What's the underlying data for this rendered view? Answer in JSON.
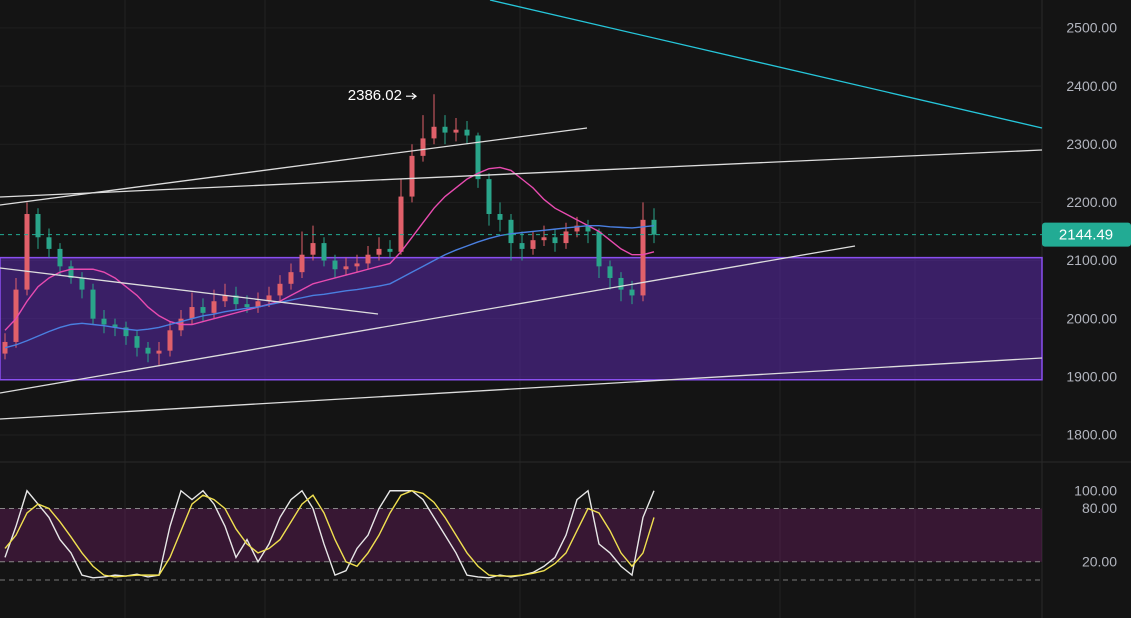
{
  "chart_data": [
    {
      "type": "candlestick",
      "open": [
        1940,
        1960,
        2050,
        2180,
        2140,
        2120,
        2090,
        2070,
        2050,
        2000,
        1990,
        1985,
        1970,
        1950,
        1940,
        1945,
        1980,
        2000,
        2020,
        2010,
        2030,
        2040,
        2025,
        2020,
        2030,
        2040,
        2060,
        2080,
        2110,
        2130,
        2100,
        2085,
        2090,
        2095,
        2110,
        2120,
        2115,
        2210,
        2280,
        2310,
        2330,
        2320,
        2325,
        2315,
        2240,
        2180,
        2170,
        2130,
        2120,
        2135,
        2140,
        2130,
        2150,
        2160,
        2150,
        2090,
        2070,
        2050,
        2040,
        2170
      ],
      "high": [
        1975,
        2070,
        2200,
        2190,
        2155,
        2130,
        2100,
        2080,
        2060,
        2015,
        2000,
        1995,
        1980,
        1960,
        1960,
        1995,
        2015,
        2045,
        2035,
        2050,
        2060,
        2055,
        2040,
        2045,
        2055,
        2075,
        2095,
        2150,
        2160,
        2140,
        2110,
        2105,
        2110,
        2125,
        2140,
        2135,
        2240,
        2300,
        2350,
        2386.02,
        2350,
        2345,
        2340,
        2320,
        2250,
        2200,
        2180,
        2150,
        2150,
        2160,
        2155,
        2165,
        2175,
        2170,
        2155,
        2100,
        2080,
        2065,
        2200,
        2190
      ],
      "low": [
        1930,
        1950,
        2040,
        2120,
        2105,
        2075,
        2060,
        2035,
        1990,
        1975,
        1970,
        1955,
        1935,
        1925,
        1920,
        1935,
        1970,
        1990,
        1995,
        2000,
        2020,
        2015,
        2010,
        2010,
        2020,
        2030,
        2050,
        2070,
        2100,
        2090,
        2070,
        2075,
        2080,
        2085,
        2100,
        2105,
        2110,
        2200,
        2270,
        2300,
        2300,
        2305,
        2300,
        2225,
        2160,
        2150,
        2100,
        2100,
        2110,
        2125,
        2115,
        2120,
        2140,
        2130,
        2070,
        2050,
        2030,
        2025,
        2030,
        2130
      ],
      "close": [
        1960,
        2050,
        2180,
        2140,
        2120,
        2090,
        2070,
        2050,
        2000,
        1990,
        1985,
        1970,
        1950,
        1940,
        1945,
        1980,
        2000,
        2020,
        2010,
        2030,
        2040,
        2025,
        2020,
        2030,
        2040,
        2060,
        2080,
        2110,
        2130,
        2100,
        2085,
        2090,
        2095,
        2110,
        2120,
        2115,
        2210,
        2280,
        2310,
        2330,
        2320,
        2325,
        2315,
        2240,
        2180,
        2170,
        2130,
        2120,
        2135,
        2140,
        2130,
        2150,
        2160,
        2150,
        2090,
        2070,
        2050,
        2040,
        2170,
        2144.49
      ],
      "up_color": "#e0606a",
      "down_color": "#2aa58a",
      "series": [
        {
          "color": "#e84bb0",
          "values": [
            1980,
            2000,
            2030,
            2055,
            2070,
            2080,
            2085,
            2085,
            2085,
            2080,
            2070,
            2055,
            2040,
            2020,
            2005,
            1995,
            1990,
            1990,
            1995,
            2000,
            2005,
            2010,
            2015,
            2020,
            2025,
            2030,
            2040,
            2050,
            2060,
            2065,
            2070,
            2075,
            2080,
            2085,
            2090,
            2095,
            2115,
            2140,
            2165,
            2190,
            2210,
            2225,
            2240,
            2250,
            2258,
            2260,
            2255,
            2240,
            2225,
            2205,
            2190,
            2180,
            2170,
            2160,
            2150,
            2135,
            2120,
            2110,
            2110,
            2115
          ]
        },
        {
          "color": "#4a7fe0",
          "values": [
            1950,
            1955,
            1962,
            1970,
            1978,
            1985,
            1990,
            1992,
            1990,
            1988,
            1985,
            1982,
            1980,
            1982,
            1985,
            1990,
            1995,
            2000,
            2005,
            2008,
            2012,
            2015,
            2018,
            2020,
            2024,
            2028,
            2032,
            2036,
            2040,
            2042,
            2045,
            2048,
            2050,
            2053,
            2056,
            2060,
            2070,
            2080,
            2090,
            2100,
            2110,
            2118,
            2125,
            2132,
            2138,
            2143,
            2146,
            2148,
            2150,
            2152,
            2154,
            2156,
            2158,
            2160,
            2160,
            2158,
            2157,
            2156,
            2158,
            2160
          ]
        }
      ],
      "zone": [
        1895,
        2105
      ],
      "ylim": [
        1757,
        2548
      ],
      "yticks": [
        {
          "value": 1800,
          "label": "1800.00"
        },
        {
          "value": 1900,
          "label": "1900.00"
        },
        {
          "value": 2000,
          "label": "2000.00"
        },
        {
          "value": 2100,
          "label": "2100.00"
        },
        {
          "value": 2200,
          "label": "2200.00"
        },
        {
          "value": 2300,
          "label": "2300.00"
        },
        {
          "value": 2400,
          "label": "2400.00"
        },
        {
          "value": 2500,
          "label": "2500.00"
        }
      ],
      "grid": true
    },
    {
      "type": "line",
      "series": [
        {
          "color": "#e8e8e8",
          "values": [
            25,
            60,
            100,
            85,
            70,
            45,
            30,
            5,
            2,
            3,
            5,
            4,
            6,
            3,
            5,
            60,
            100,
            90,
            100,
            85,
            60,
            25,
            45,
            20,
            40,
            70,
            90,
            100,
            80,
            40,
            5,
            10,
            35,
            50,
            80,
            100,
            100,
            100,
            90,
            70,
            50,
            30,
            5,
            3,
            2,
            5,
            3,
            5,
            8,
            15,
            25,
            50,
            90,
            100,
            40,
            30,
            15,
            5,
            70,
            100
          ]
        },
        {
          "color": "#f0e050",
          "values": [
            35,
            50,
            75,
            85,
            80,
            65,
            48,
            30,
            15,
            5,
            3,
            4,
            5,
            5,
            5,
            25,
            55,
            85,
            95,
            90,
            80,
            57,
            40,
            30,
            35,
            45,
            65,
            85,
            95,
            75,
            45,
            20,
            15,
            30,
            50,
            75,
            95,
            100,
            97,
            87,
            70,
            50,
            30,
            15,
            5,
            4,
            4,
            5,
            7,
            10,
            18,
            30,
            55,
            80,
            75,
            55,
            30,
            15,
            30,
            70
          ]
        }
      ],
      "band": [
        20,
        80
      ],
      "ylim": [
        -23,
        129
      ],
      "yticks": [
        {
          "value": 20,
          "label": "20.00"
        },
        {
          "value": 80,
          "label": "80.00"
        },
        {
          "value": 100,
          "label": "100.00"
        }
      ]
    }
  ]
}
